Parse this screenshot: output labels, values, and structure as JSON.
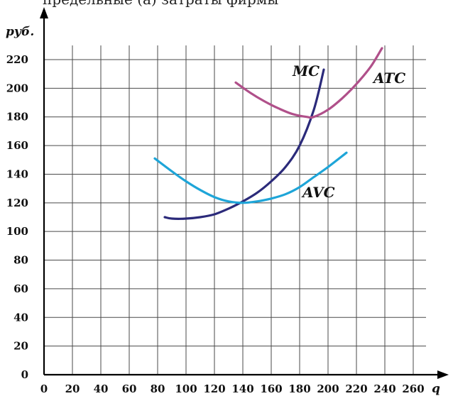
{
  "top_text": "предельные (а) затраты фирмы",
  "chart_data": {
    "type": "line",
    "xlabel": "q",
    "ylabel": "руб.",
    "xlim": [
      0,
      260
    ],
    "ylim": [
      0,
      220
    ],
    "x_ticks": [
      "0",
      "20",
      "40",
      "60",
      "80",
      "100",
      "120",
      "140",
      "160",
      "180",
      "200",
      "220",
      "240",
      "260"
    ],
    "y_ticks": [
      "0",
      "20",
      "40",
      "60",
      "80",
      "100",
      "120",
      "140",
      "160",
      "180",
      "200",
      "220"
    ],
    "grid": true,
    "series": [
      {
        "name": "MC",
        "color": "#2b2a7a",
        "x": [
          85,
          90,
          100,
          110,
          120,
          130,
          140,
          150,
          160,
          170,
          180,
          190,
          197
        ],
        "y": [
          110,
          109,
          109,
          110,
          112,
          116,
          121,
          127,
          135,
          145,
          160,
          185,
          213
        ]
      },
      {
        "name": "AVC",
        "color": "#1ea5d8",
        "x": [
          78,
          90,
          100,
          110,
          120,
          130,
          140,
          150,
          160,
          170,
          180,
          190,
          200,
          213
        ],
        "y": [
          151,
          142,
          135,
          129,
          124,
          121,
          120,
          121,
          123,
          126,
          131,
          138,
          145,
          155
        ]
      },
      {
        "name": "ATC",
        "color": "#b0508a",
        "x": [
          135,
          145,
          155,
          165,
          175,
          185,
          190,
          200,
          210,
          220,
          230,
          238
        ],
        "y": [
          204,
          197,
          191,
          186,
          182,
          180,
          180,
          185,
          193,
          203,
          215,
          228
        ]
      }
    ]
  }
}
